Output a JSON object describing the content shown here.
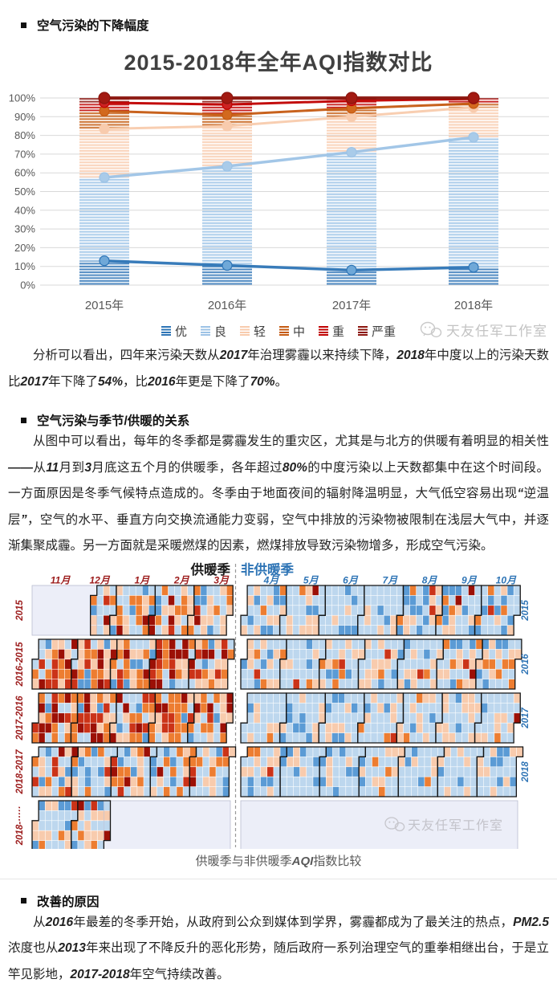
{
  "article": {
    "headings": [
      {
        "text": "空气污染的下降幅度"
      },
      {
        "text": "空气污染与季节/供暖的关系"
      },
      {
        "text": "改善的原因"
      }
    ],
    "paragraphs": {
      "p1": [
        {
          "t": "分析可以看出，四年来污染天数从"
        },
        {
          "t": "2017",
          "b": true
        },
        {
          "t": "年治理雾霾以来持续下降，"
        },
        {
          "t": "2018",
          "b": true
        },
        {
          "t": "年中度以上的污染天数比"
        },
        {
          "t": "2017",
          "b": true
        },
        {
          "t": "年下降了"
        },
        {
          "t": "54%",
          "b": true
        },
        {
          "t": "，比"
        },
        {
          "t": "2016",
          "b": true
        },
        {
          "t": "年更是下降了"
        },
        {
          "t": "70%",
          "b": true
        },
        {
          "t": "。"
        }
      ],
      "p2": [
        {
          "t": "从图中可以看出，每年的冬季都是雾霾发生的重灾区，尤其是与北方的供暖有着明显的相关性"
        },
        {
          "t": "——",
          "b": true
        },
        {
          "t": "从"
        },
        {
          "t": "11",
          "b": true
        },
        {
          "t": "月到"
        },
        {
          "t": "3",
          "b": true
        },
        {
          "t": "月底这五个月的供暖季，各年超过"
        },
        {
          "t": "80%",
          "b": true
        },
        {
          "t": "的中度污染以上天数都集中在这个时间段。一方面原因是冬季气候特点造成的。冬季由于地面夜间的辐射降温明显，大气低空容易出现"
        },
        {
          "t": "“",
          "b": true
        },
        {
          "t": "逆温层"
        },
        {
          "t": "”",
          "b": true
        },
        {
          "t": "，空气的水平、垂直方向交换流通能力变弱，空气中排放的污染物被限制在浅层大气中，并逐渐集聚成霾。另一方面就是采暖燃煤的因素，燃煤排放导致污染物增多，形成空气污染。"
        }
      ],
      "p3": [
        {
          "t": "从"
        },
        {
          "t": "2016",
          "b": true
        },
        {
          "t": "年最差的冬季开始，从政府到公众到媒体到学界，雾霾都成为了最关注的热点，"
        },
        {
          "t": "PM2.5",
          "b": true
        },
        {
          "t": "浓度也从"
        },
        {
          "t": "2013",
          "b": true
        },
        {
          "t": "年来出现了不降反升的恶化形势，随后政府一系列治理空气的重拳相继出台，于是立竿见影地，"
        },
        {
          "t": "2017-2018",
          "b": true
        },
        {
          "t": "年空气持续改善。"
        }
      ]
    }
  },
  "watermark_text": "天友任军工作室",
  "chart_data": {
    "type": "bar",
    "subtype": "stacked-percent-columns-with-cumulative-lines",
    "title": "2015-2018年全年AQI指数对比",
    "categories": [
      "2015年",
      "2016年",
      "2017年",
      "2018年"
    ],
    "ylim": [
      0,
      100
    ],
    "ytick_step": 10,
    "ytick_format": "percent",
    "grid": true,
    "legend_position": "bottom",
    "series": [
      {
        "name": "优",
        "cumulative_pct": [
          13,
          10.5,
          8,
          9.5
        ],
        "color": "#2e75b6",
        "marker": "#6fa8d8",
        "line_width": 3.5
      },
      {
        "name": "良",
        "cumulative_pct": [
          57.5,
          63.5,
          71,
          79
        ],
        "color": "#9dc3e6",
        "marker": "#a9cbe9",
        "line_width": 3.5
      },
      {
        "name": "轻",
        "cumulative_pct": [
          83.5,
          85,
          90,
          95
        ],
        "color": "#f8cbad",
        "marker": "#f8cbad",
        "line_width": 3
      },
      {
        "name": "中",
        "cumulative_pct": [
          93,
          91,
          94.5,
          97
        ],
        "color": "#c55a11",
        "marker": "#d2691e",
        "line_width": 3
      },
      {
        "name": "重",
        "cumulative_pct": [
          97.5,
          96.5,
          98.5,
          99.5
        ],
        "color": "#c00000",
        "marker": "#cc2222",
        "line_width": 3
      },
      {
        "name": "严重",
        "cumulative_pct": [
          100,
          100,
          100,
          100
        ],
        "color": "#8b150e",
        "marker": "#a31a12",
        "line_width": 4
      }
    ],
    "watermark": "天友任军工作室"
  },
  "heatmap_data": {
    "type": "heatmap",
    "caption_segments": [
      {
        "t": "供暖季与非供暖季"
      },
      {
        "t": "AQI",
        "b": true
      },
      {
        "t": "指数比较"
      }
    ],
    "seed": 20190101,
    "palette": [
      "#bdd7ee",
      "#5b9bd5",
      "#f8cbad",
      "#ed7d31",
      "#cb3318",
      "#9c1006"
    ],
    "palette_names": [
      "良-lightblue",
      "优-mediumblue",
      "轻-peach",
      "中-orange",
      "重-red",
      "严重-darkred"
    ],
    "empty_fill": "#eceef8",
    "sections": [
      {
        "id": "heating",
        "title": "供暖季",
        "title_color": "#1a1a1a",
        "label_color": "#9c1c1c",
        "months": [
          "11月",
          "12月",
          "1月",
          "2月",
          "3月"
        ]
      },
      {
        "id": "non-heating",
        "title": "非供暖季",
        "title_color": "#2e74b5",
        "label_color": "#2e74b5",
        "months": [
          "4月",
          "5月",
          "6月",
          "7月",
          "8月",
          "9月",
          "10月"
        ]
      }
    ],
    "rows": [
      {
        "left_label": "2015",
        "right_label": "2015",
        "offset": 3,
        "left_range": [
          43,
          150
        ],
        "right_range": [
          0,
          210
        ],
        "left_weights": [
          0.3,
          0.12,
          0.26,
          0.18,
          0.07,
          0.07
        ],
        "right_weights": [
          0.58,
          0.13,
          0.22,
          0.05,
          0.012,
          0.008
        ]
      },
      {
        "left_label": "2016-2015",
        "right_label": "2016",
        "offset": 2,
        "left_range": [
          0,
          150
        ],
        "right_range": [
          0,
          210
        ],
        "left_weights": [
          0.15,
          0.07,
          0.2,
          0.28,
          0.13,
          0.17
        ],
        "right_weights": [
          0.56,
          0.12,
          0.23,
          0.06,
          0.02,
          0.01
        ]
      },
      {
        "left_label": "2017-2016",
        "right_label": "2017",
        "offset": 3,
        "left_range": [
          0,
          150
        ],
        "right_range": [
          0,
          210
        ],
        "left_weights": [
          0.15,
          0.08,
          0.2,
          0.26,
          0.13,
          0.18
        ],
        "right_weights": [
          0.62,
          0.12,
          0.21,
          0.04,
          0.005,
          0.005
        ]
      },
      {
        "left_label": "2018-2017",
        "right_label": "2018",
        "offset": 1,
        "left_range": [
          0,
          150
        ],
        "right_range": [
          0,
          210
        ],
        "left_weights": [
          0.4,
          0.13,
          0.22,
          0.15,
          0.05,
          0.05
        ],
        "right_weights": [
          0.66,
          0.12,
          0.18,
          0.03,
          0.005,
          0.005
        ]
      },
      {
        "left_label": "2018-·····",
        "right_label": "",
        "offset": 2,
        "left_range": [
          0,
          57
        ],
        "right_range": [
          0,
          0
        ],
        "left_weights": [
          0.44,
          0.1,
          0.27,
          0.1,
          0.03,
          0.06
        ],
        "right_weights": [
          1,
          0,
          0,
          0,
          0,
          0
        ]
      }
    ]
  }
}
